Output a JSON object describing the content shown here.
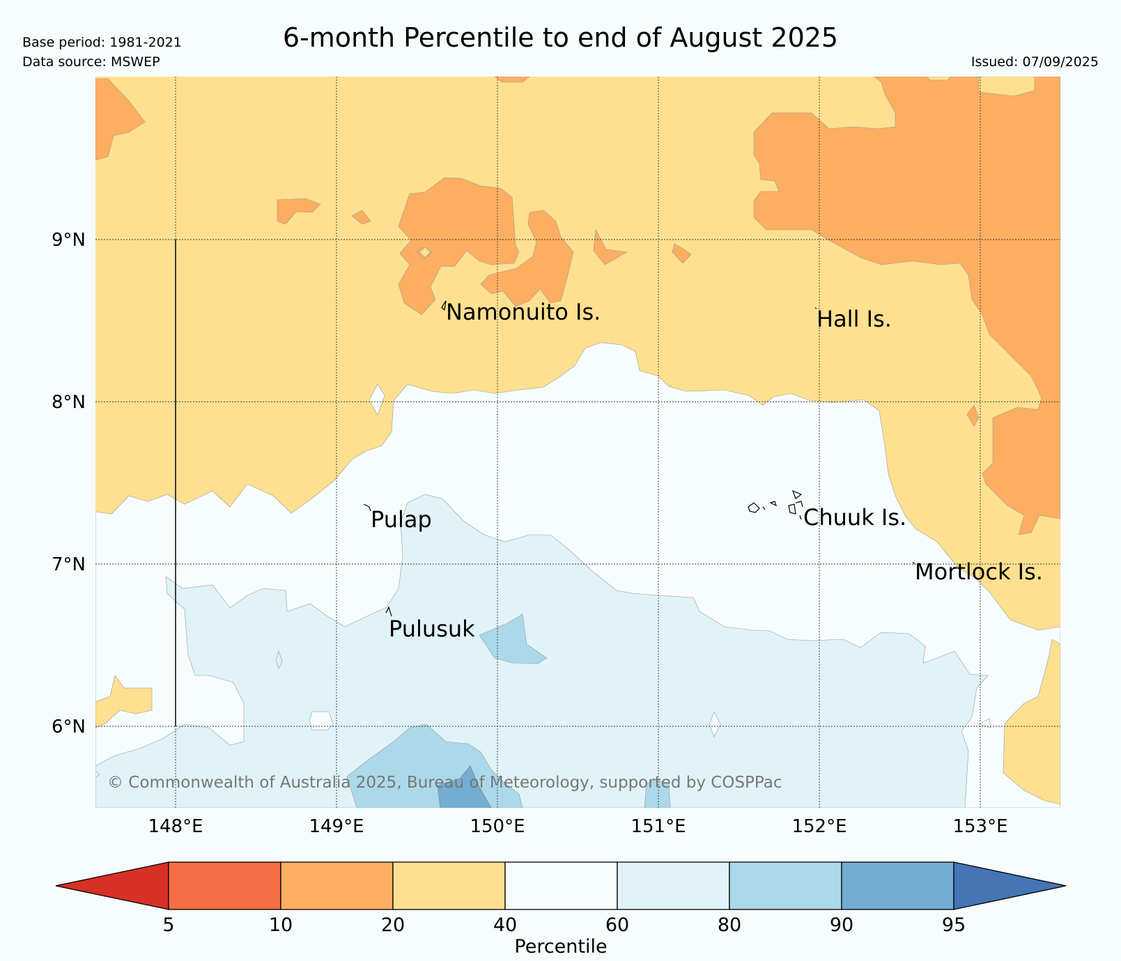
{
  "header": {
    "title": "6-month Percentile to end of August 2025",
    "base_period": "Base period: 1981-2021",
    "data_source": "Data source: MSWEP",
    "issued": "Issued: 07/09/2025"
  },
  "map": {
    "lat_labels": [
      "9°N",
      "8°N",
      "7°N",
      "6°N"
    ],
    "lon_labels": [
      "148°E",
      "149°E",
      "150°E",
      "151°E",
      "152°E",
      "153°E"
    ],
    "places": [
      "Namonuito Is.",
      "Hall Is.",
      "Pulap",
      "Chuuk Is.",
      "Mortlock Is.",
      "Pulusuk"
    ],
    "copyright": "© Commonwealth of Australia 2025, Bureau of Meteorology, supported by COSPPac"
  },
  "legend": {
    "label": "Percentile",
    "ticks": [
      "5",
      "10",
      "20",
      "40",
      "60",
      "80",
      "90",
      "95"
    ],
    "colors": [
      "#d73027",
      "#f46d43",
      "#fdae61",
      "#fee090",
      "#f7fcfd",
      "#e0f3f8",
      "#abd9e9",
      "#74add1",
      "#4575b4"
    ]
  }
}
